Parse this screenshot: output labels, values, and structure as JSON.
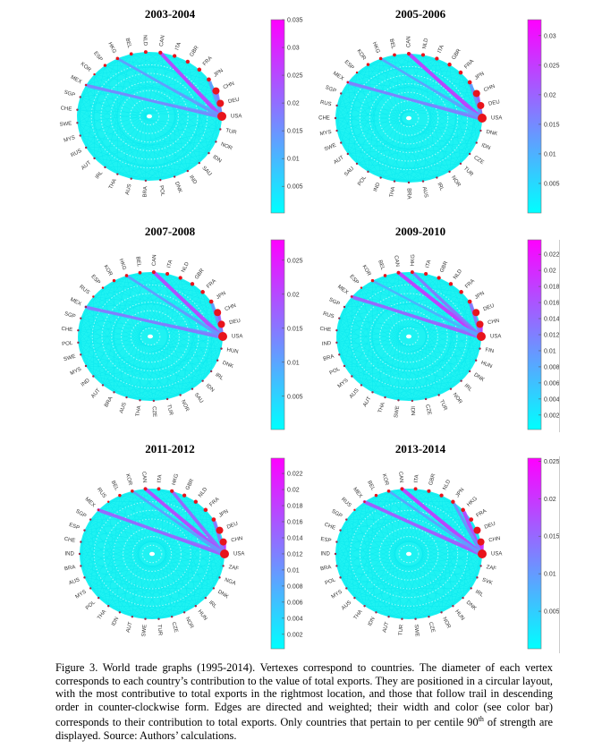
{
  "colors": {
    "low": "#00ffff",
    "high": "#ff00ff",
    "node": "#e8141c"
  },
  "chart_data": [
    {
      "type": "network-circular",
      "title": "2003-2004",
      "color_range": [
        0.0002,
        0.035
      ],
      "ticks": [
        "0.005",
        "0.01",
        "0.015",
        "0.02",
        "0.025",
        "0.03",
        "0.035"
      ],
      "nodes": [
        "USA",
        "DEU",
        "CHN",
        "JPN",
        "FRA",
        "GBR",
        "ITA",
        "CAN",
        "NLD",
        "BEL",
        "HKG",
        "ESP",
        "KOR",
        "MEX",
        "SGP",
        "CHE",
        "SWE",
        "MYS",
        "RUS",
        "AUT",
        "IRL",
        "THA",
        "AUS",
        "BRA",
        "POL",
        "DNK",
        "IND",
        "SAU",
        "IDN",
        "NOR",
        "TUR"
      ],
      "strong_edges": [
        [
          "CAN",
          "USA",
          0.028
        ],
        [
          "MEX",
          "USA",
          0.018
        ],
        [
          "HKG",
          "USA",
          0.015
        ],
        [
          "CHN",
          "USA",
          0.02
        ],
        [
          "JPN",
          "USA",
          0.015
        ]
      ]
    },
    {
      "type": "network-circular",
      "title": "2005-2006",
      "color_range": [
        0.0,
        0.0327
      ],
      "ticks": [
        "0.005",
        "0.01",
        "0.015",
        "0.02",
        "0.025",
        "0.03"
      ],
      "nodes": [
        "USA",
        "DEU",
        "CHN",
        "JPN",
        "FRA",
        "GBR",
        "ITA",
        "NLD",
        "CAN",
        "BEL",
        "HKG",
        "KOR",
        "ESP",
        "MEX",
        "SGP",
        "RUS",
        "CHE",
        "MYS",
        "SWE",
        "AUT",
        "SAU",
        "POL",
        "IND",
        "THA",
        "BRA",
        "AUS",
        "IRL",
        "NOR",
        "TUR",
        "CZE",
        "IDN",
        "DNK"
      ],
      "strong_edges": [
        [
          "CAN",
          "USA",
          0.027
        ],
        [
          "MEX",
          "USA",
          0.018
        ],
        [
          "HKG",
          "USA",
          0.013
        ],
        [
          "CHN",
          "USA",
          0.022
        ],
        [
          "JPN",
          "USA",
          0.014
        ]
      ]
    },
    {
      "type": "network-circular",
      "title": "2007-2008",
      "color_range": [
        0.0001,
        0.028
      ],
      "ticks": [
        "0.005",
        "0.01",
        "0.015",
        "0.02",
        "0.025"
      ],
      "nodes": [
        "USA",
        "DEU",
        "CHN",
        "JPN",
        "FRA",
        "GBR",
        "NLD",
        "ITA",
        "CAN",
        "BEL",
        "HKG",
        "KOR",
        "ESP",
        "RUS",
        "MEX",
        "SGP",
        "CHE",
        "POL",
        "SWE",
        "MYS",
        "IND",
        "AUT",
        "BRA",
        "AUS",
        "THA",
        "CZE",
        "TUR",
        "NOR",
        "SAU",
        "IDN",
        "IRL",
        "DNK",
        "HUN"
      ],
      "strong_edges": [
        [
          "CAN",
          "USA",
          0.022
        ],
        [
          "MEX",
          "USA",
          0.016
        ],
        [
          "HKG",
          "USA",
          0.012
        ],
        [
          "CHN",
          "USA",
          0.02
        ],
        [
          "JPN",
          "USA",
          0.012
        ]
      ]
    },
    {
      "type": "network-circular",
      "title": "2009-2010",
      "color_range": [
        0.0002,
        0.0238
      ],
      "ticks": [
        "0.002",
        "0.004",
        "0.006",
        "0.008",
        "0.01",
        "0.012",
        "0.014",
        "0.016",
        "0.018",
        "0.02",
        "0.022"
      ],
      "nodes": [
        "USA",
        "CHN",
        "DEU",
        "JPN",
        "FRA",
        "NLD",
        "GBR",
        "ITA",
        "HKG",
        "CAN",
        "BEL",
        "KOR",
        "ESP",
        "MEX",
        "SGP",
        "RUS",
        "CHE",
        "IND",
        "BRA",
        "POL",
        "MYS",
        "AUS",
        "AUT",
        "THA",
        "SWE",
        "IDN",
        "CZE",
        "TUR",
        "NOR",
        "IRL",
        "DNK",
        "HUN",
        "FIN"
      ],
      "strong_edges": [
        [
          "CAN",
          "USA",
          0.02
        ],
        [
          "MEX",
          "USA",
          0.016
        ],
        [
          "HKG",
          "USA",
          0.014
        ],
        [
          "CHN",
          "USA",
          0.02
        ],
        [
          "JPN",
          "USA",
          0.014
        ],
        [
          "KOR",
          "USA",
          0.008
        ]
      ]
    },
    {
      "type": "network-circular",
      "title": "2011-2012",
      "color_range": [
        0.0002,
        0.0239
      ],
      "ticks": [
        "0.002",
        "0.004",
        "0.006",
        "0.008",
        "0.01",
        "0.012",
        "0.014",
        "0.016",
        "0.018",
        "0.02",
        "0.022"
      ],
      "nodes": [
        "USA",
        "CHN",
        "DEU",
        "JPN",
        "FRA",
        "NLD",
        "GBR",
        "HKG",
        "ITA",
        "CAN",
        "KOR",
        "BEL",
        "RUS",
        "MEX",
        "SGP",
        "ESP",
        "CHE",
        "IND",
        "BRA",
        "AUS",
        "MYS",
        "POL",
        "THA",
        "IDN",
        "AUT",
        "SWE",
        "TUR",
        "CZE",
        "NOR",
        "HUN",
        "IRL",
        "DNK",
        "NGA",
        "ZAF"
      ],
      "strong_edges": [
        [
          "CAN",
          "USA",
          0.019
        ],
        [
          "MEX",
          "USA",
          0.016
        ],
        [
          "HKG",
          "USA",
          0.016
        ],
        [
          "CHN",
          "USA",
          0.021
        ],
        [
          "JPN",
          "USA",
          0.014
        ],
        [
          "KOR",
          "USA",
          0.01
        ]
      ]
    },
    {
      "type": "network-circular",
      "title": "2013-2014",
      "color_range": [
        0.0,
        0.0254
      ],
      "ticks": [
        "0.005",
        "0.01",
        "0.015",
        "0.02",
        "0.025"
      ],
      "nodes": [
        "USA",
        "CHN",
        "DEU",
        "FRA",
        "HKG",
        "JPN",
        "NLD",
        "GBR",
        "ITA",
        "CAN",
        "KOR",
        "BEL",
        "MEX",
        "RUS",
        "SGP",
        "CHE",
        "ESP",
        "IND",
        "BRA",
        "POL",
        "MYS",
        "AUS",
        "THA",
        "IDN",
        "AUT",
        "TUR",
        "SWE",
        "CZE",
        "NOR",
        "HUN",
        "DNK",
        "IRL",
        "SVK",
        "ZAF"
      ],
      "strong_edges": [
        [
          "CAN",
          "USA",
          0.021
        ],
        [
          "MEX",
          "USA",
          0.018
        ],
        [
          "HKG",
          "USA",
          0.02
        ],
        [
          "CHN",
          "USA",
          0.023
        ],
        [
          "JPN",
          "USA",
          0.012
        ],
        [
          "KOR",
          "USA",
          0.01
        ]
      ]
    }
  ],
  "caption": {
    "text_before_sup": "Figure 3. World trade graphs (1995-2014). Vertexes correspond to countries. The diameter of each vertex corresponds to each country’s contribution to the value of total exports. They are positioned in a circular layout, with the most contributive to total exports in the rightmost location, and those that follow trail in descending order in counter-clockwise form. Edges are directed and weighted; their width and color (see color bar) corresponds to their contribution to total exports. Only countries that pertain to per centile 90",
    "sup": "th",
    "text_after_sup": " of strength are displayed. Source: Authors’ calculations."
  }
}
